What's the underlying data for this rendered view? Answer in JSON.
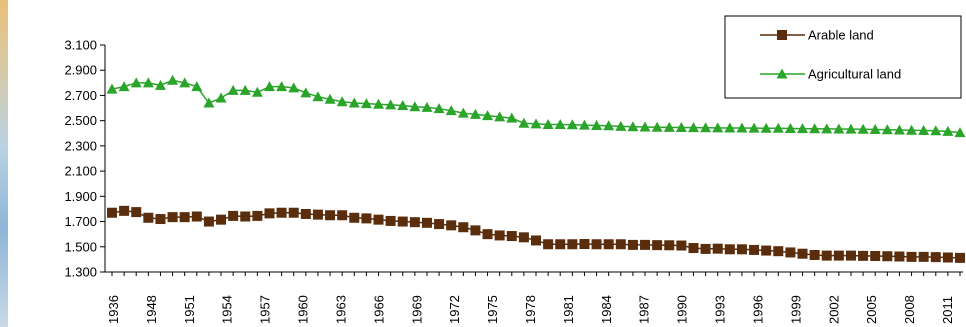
{
  "colors": {
    "arable": "#5a2d0c",
    "agricultural": "#2aa52a",
    "axis": "#000000"
  },
  "chart_data": {
    "type": "line",
    "x_tick_labels": [
      "1936",
      "1948",
      "1951",
      "1954",
      "1957",
      "1960",
      "1963",
      "1966",
      "1969",
      "1972",
      "1975",
      "1978",
      "1981",
      "1984",
      "1987",
      "1990",
      "1993",
      "1996",
      "1999",
      "2002",
      "2005",
      "2008",
      "2011"
    ],
    "y_ticks": [
      "1.300",
      "1.500",
      "1.700",
      "1.900",
      "2.100",
      "2.300",
      "2.500",
      "2.700",
      "2.900",
      "3.100"
    ],
    "ylim": [
      1300,
      3100
    ],
    "grid": false,
    "legend_position": "top-right",
    "series": [
      {
        "name": "Arable land",
        "marker": "square",
        "values": [
          1770,
          1785,
          1775,
          1730,
          1720,
          1735,
          1735,
          1740,
          1700,
          1715,
          1745,
          1740,
          1745,
          1765,
          1770,
          1770,
          1760,
          1755,
          1750,
          1750,
          1730,
          1725,
          1715,
          1705,
          1700,
          1695,
          1690,
          1680,
          1670,
          1655,
          1630,
          1600,
          1590,
          1585,
          1575,
          1550,
          1520,
          1520,
          1520,
          1522,
          1520,
          1520,
          1520,
          1515,
          1515,
          1513,
          1512,
          1510,
          1490,
          1483,
          1485,
          1480,
          1480,
          1475,
          1470,
          1465,
          1455,
          1445,
          1435,
          1430,
          1430,
          1430,
          1428,
          1427,
          1425,
          1423,
          1420,
          1420,
          1418,
          1415,
          1412
        ]
      },
      {
        "name": "Agricultural land",
        "marker": "triangle",
        "values": [
          2750,
          2770,
          2800,
          2800,
          2780,
          2820,
          2800,
          2770,
          2640,
          2680,
          2740,
          2740,
          2725,
          2770,
          2770,
          2760,
          2720,
          2690,
          2670,
          2650,
          2640,
          2635,
          2630,
          2625,
          2620,
          2610,
          2605,
          2595,
          2580,
          2560,
          2550,
          2540,
          2530,
          2520,
          2480,
          2475,
          2470,
          2470,
          2468,
          2465,
          2462,
          2460,
          2455,
          2452,
          2450,
          2448,
          2447,
          2446,
          2445,
          2444,
          2443,
          2442,
          2442,
          2441,
          2440,
          2440,
          2438,
          2437,
          2436,
          2435,
          2434,
          2433,
          2432,
          2430,
          2428,
          2426,
          2424,
          2422,
          2420,
          2415,
          2405
        ]
      }
    ]
  }
}
